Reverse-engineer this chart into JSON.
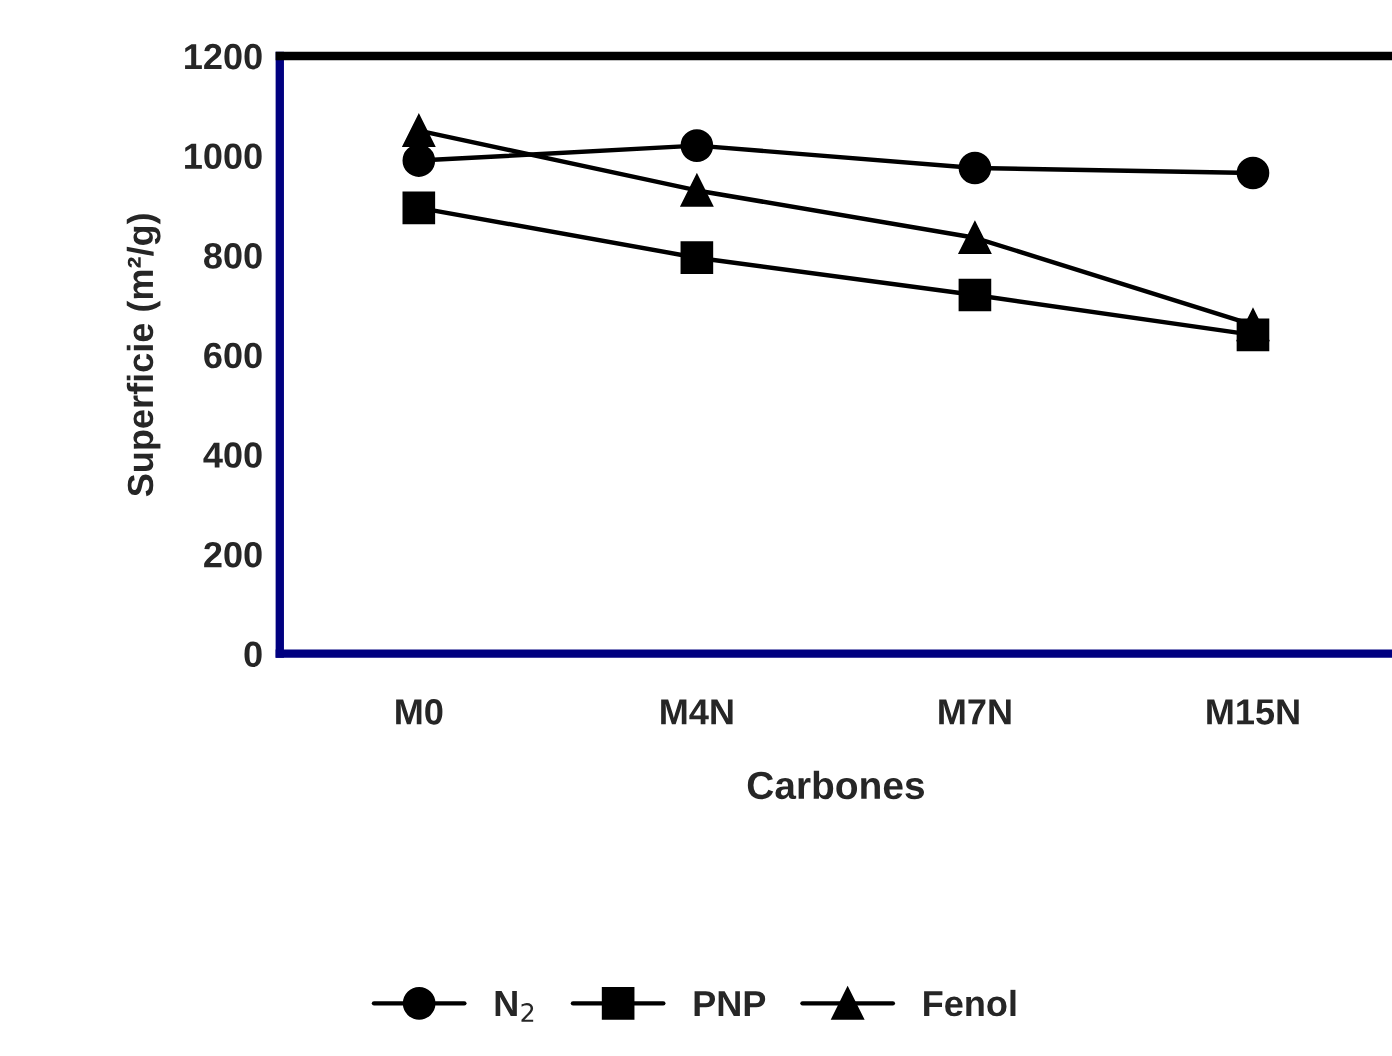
{
  "chart_data": {
    "type": "line",
    "xlabel": "Carbones",
    "ylabel": "Superficie (m²/g)",
    "categories": [
      "M0",
      "M4N",
      "M7N",
      "M15N"
    ],
    "series": [
      {
        "name": "N$_{2}$",
        "color": "#000000",
        "marker": "circle",
        "values": [
          990,
          1020,
          975,
          965
        ]
      },
      {
        "name": "PNP",
        "color": "#000000",
        "marker": "square",
        "values": [
          895,
          795,
          720,
          640
        ]
      },
      {
        "name": "Fenol",
        "color": "#000000",
        "marker": "triangle",
        "values": [
          1050,
          930,
          835,
          660
        ]
      }
    ],
    "ylim": [
      0,
      1200
    ],
    "yticks": [
      0,
      200,
      400,
      600,
      800,
      1000,
      1200
    ],
    "grid": false,
    "legend": "bottom",
    "line_style": "solid"
  }
}
